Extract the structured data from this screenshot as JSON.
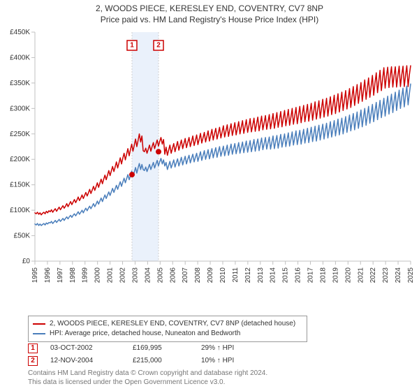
{
  "title_line1": "2, WOODS PIECE, KERESLEY END, COVENTRY, CV7 8NP",
  "title_line2": "Price paid vs. HM Land Registry's House Price Index (HPI)",
  "chart": {
    "type": "line",
    "background_color": "#ffffff",
    "grid_color": "#c0c0c0",
    "x_start_year": 1995,
    "x_end_year": 2025,
    "ylim": [
      0,
      450000
    ],
    "ytick_step": 50000,
    "ytick_prefix": "£",
    "ytick_suffix": "K",
    "ytick_divisor": 1000,
    "label_fontsize": 10,
    "series": [
      {
        "name": "property",
        "color": "#cc0000",
        "legend": "2, WOODS PIECE, KERESLEY END, COVENTRY, CV7 8NP (detached house)",
        "values": [
          95000,
          93000,
          96000,
          92000,
          95000,
          91000,
          94000,
          96000,
          93000,
          98000,
          95000,
          99000,
          97000,
          101000,
          96000,
          100000,
          103000,
          98000,
          102000,
          106000,
          101000,
          105000,
          109000,
          104000,
          108000,
          113000,
          107000,
          112000,
          117000,
          111000,
          116000,
          121000,
          115000,
          120000,
          126000,
          119000,
          124000,
          130000,
          123000,
          129000,
          135000,
          128000,
          134000,
          141000,
          133000,
          140000,
          147000,
          139000,
          146000,
          154000,
          145000,
          153000,
          161000,
          152000,
          161000,
          169000,
          160000,
          169000,
          178000,
          168000,
          177000,
          186000,
          176000,
          185000,
          195000,
          183000,
          193000,
          203000,
          191000,
          202000,
          212000,
          199000,
          210000,
          221000,
          207000,
          219000,
          230000,
          216000,
          228000,
          240000,
          225000,
          237000,
          250000,
          234000,
          246000,
          217000,
          215000,
          222000,
          212000,
          220000,
          228000,
          216000,
          225000,
          233000,
          221000,
          230000,
          238000,
          226000,
          235000,
          243000,
          230000,
          239000,
          210000,
          224000,
          208000,
          218000,
          228000,
          212000,
          222000,
          231000,
          215000,
          225000,
          235000,
          218000,
          228000,
          238000,
          221000,
          231000,
          241000,
          223000,
          233000,
          243000,
          225000,
          235000,
          246000,
          227000,
          237000,
          248000,
          229000,
          240000,
          251000,
          232000,
          242000,
          253000,
          234000,
          245000,
          256000,
          236000,
          247000,
          259000,
          238000,
          250000,
          261000,
          240000,
          251000,
          263000,
          242000,
          254000,
          266000,
          244000,
          256000,
          268000,
          245000,
          258000,
          270000,
          247000,
          259000,
          272000,
          248000,
          261000,
          274000,
          250000,
          263000,
          276000,
          251000,
          264000,
          278000,
          253000,
          266000,
          280000,
          254000,
          267000,
          281000,
          255000,
          269000,
          283000,
          256000,
          270000,
          285000,
          258000,
          272000,
          286000,
          259000,
          273000,
          288000,
          260000,
          275000,
          290000,
          261000,
          276000,
          292000,
          263000,
          278000,
          294000,
          264000,
          280000,
          296000,
          266000,
          282000,
          298000,
          267000,
          283000,
          300000,
          269000,
          285000,
          302000,
          270000,
          287000,
          304000,
          272000,
          289000,
          306000,
          274000,
          291000,
          308000,
          275000,
          293000,
          310000,
          277000,
          295000,
          313000,
          279000,
          297000,
          315000,
          281000,
          300000,
          318000,
          283000,
          302000,
          320000,
          285000,
          305000,
          323000,
          288000,
          307000,
          326000,
          290000,
          310000,
          329000,
          293000,
          313000,
          332000,
          296000,
          316000,
          335000,
          299000,
          319000,
          339000,
          302000,
          323000,
          343000,
          306000,
          327000,
          347000,
          310000,
          331000,
          351000,
          314000,
          335000,
          356000,
          318000,
          340000,
          360000,
          322000,
          344000,
          365000,
          326000,
          349000,
          370000,
          331000,
          353000,
          375000,
          335000,
          358000,
          380000,
          340000,
          363000,
          381000,
          341000,
          364000,
          382000,
          342000,
          365000,
          382000,
          342000,
          365000,
          383000,
          343000,
          365000,
          383000,
          343000,
          365000,
          384000,
          343000,
          366000,
          384000
        ]
      },
      {
        "name": "hpi",
        "color": "#4a7ebb",
        "legend": "HPI: Average price, detached house, Nuneaton and Bedworth",
        "values": [
          73000,
          71000,
          74000,
          70000,
          73000,
          70000,
          72000,
          74000,
          71000,
          75000,
          73000,
          76000,
          75000,
          78000,
          74000,
          77000,
          80000,
          76000,
          79000,
          82000,
          78000,
          81000,
          84000,
          80000,
          84000,
          87000,
          83000,
          87000,
          90000,
          86000,
          90000,
          93000,
          89000,
          93000,
          97000,
          92000,
          96000,
          100000,
          95000,
          100000,
          104000,
          99000,
          104000,
          108000,
          103000,
          108000,
          113000,
          107000,
          112000,
          118000,
          112000,
          118000,
          124000,
          117000,
          124000,
          130000,
          123000,
          130000,
          136000,
          129000,
          136000,
          143000,
          135000,
          142000,
          149000,
          141000,
          149000,
          156000,
          147000,
          155000,
          163000,
          154000,
          162000,
          170000,
          160000,
          168000,
          177000,
          166000,
          175000,
          184000,
          173000,
          183000,
          192000,
          180000,
          190000,
          180000,
          178000,
          185000,
          176000,
          183000,
          190000,
          180000,
          187000,
          194000,
          183000,
          191000,
          198000,
          187000,
          195000,
          202000,
          191000,
          199000,
          187000,
          194000,
          180000,
          188000,
          196000,
          183000,
          191000,
          199000,
          185000,
          193000,
          201000,
          187000,
          195000,
          204000,
          189000,
          198000,
          206000,
          191000,
          200000,
          208000,
          193000,
          202000,
          210000,
          195000,
          204000,
          212000,
          196000,
          206000,
          215000,
          198000,
          207000,
          217000,
          200000,
          209000,
          219000,
          201000,
          211000,
          221000,
          203000,
          213000,
          223000,
          204000,
          215000,
          225000,
          206000,
          216000,
          226000,
          207000,
          218000,
          228000,
          208000,
          219000,
          230000,
          210000,
          221000,
          231000,
          211000,
          222000,
          233000,
          212000,
          223000,
          234000,
          213000,
          225000,
          236000,
          214000,
          226000,
          237000,
          215000,
          227000,
          239000,
          216000,
          229000,
          240000,
          217000,
          230000,
          242000,
          219000,
          231000,
          243000,
          220000,
          232000,
          244000,
          220000,
          233000,
          246000,
          221000,
          235000,
          247000,
          222000,
          236000,
          249000,
          224000,
          237000,
          250000,
          225000,
          239000,
          252000,
          226000,
          240000,
          254000,
          228000,
          242000,
          256000,
          229000,
          243000,
          257000,
          230000,
          245000,
          259000,
          232000,
          247000,
          261000,
          233000,
          248000,
          263000,
          235000,
          250000,
          265000,
          236000,
          252000,
          267000,
          238000,
          254000,
          269000,
          240000,
          256000,
          271000,
          242000,
          258000,
          274000,
          244000,
          260000,
          276000,
          246000,
          262000,
          279000,
          248000,
          265000,
          281000,
          250000,
          267000,
          284000,
          253000,
          270000,
          287000,
          256000,
          273000,
          290000,
          258000,
          276000,
          293000,
          261000,
          279000,
          297000,
          264000,
          283000,
          300000,
          267000,
          286000,
          304000,
          271000,
          290000,
          308000,
          274000,
          294000,
          312000,
          278000,
          298000,
          316000,
          282000,
          302000,
          320000,
          285000,
          306000,
          324000,
          289000,
          310000,
          328000,
          292000,
          314000,
          332000,
          296000,
          318000,
          336000,
          300000,
          322000,
          340000,
          303000,
          325000,
          344000,
          307000,
          329000,
          348000
        ]
      }
    ],
    "sale_markers": [
      {
        "index": 1,
        "color": "#cc0000",
        "year_frac": 2002.75,
        "price": 169995
      },
      {
        "index": 2,
        "color": "#cc0000",
        "year_frac": 2004.87,
        "price": 215000
      }
    ],
    "band": {
      "from_year": 2002.75,
      "to_year": 2004.87,
      "fill": "#eaf1fb"
    }
  },
  "sales": [
    {
      "index": 1,
      "color": "#cc0000",
      "date": "03-OCT-2002",
      "price": "£169,995",
      "delta": "29% ↑ HPI"
    },
    {
      "index": 2,
      "color": "#cc0000",
      "date": "12-NOV-2004",
      "price": "£215,000",
      "delta": "10% ↑ HPI"
    }
  ],
  "footnote_line1": "Contains HM Land Registry data © Crown copyright and database right 2024.",
  "footnote_line2": "This data is licensed under the Open Government Licence v3.0."
}
